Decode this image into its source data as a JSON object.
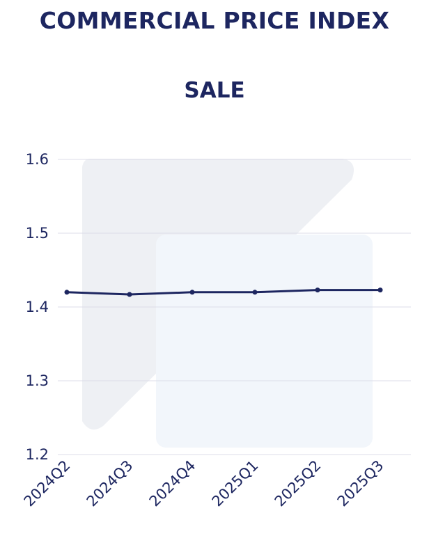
{
  "title": "COMMERCIAL PRICE INDEX",
  "subtitle": "SALE",
  "colors": {
    "line": "#1d2660",
    "grid": "#dcdde8",
    "text": "#1d2660",
    "watermark": "#eef0f4",
    "watermark_light": "#f2f6fb"
  },
  "chart_data": {
    "type": "line",
    "title": "COMMERCIAL PRICE INDEX",
    "subtitle": "SALE",
    "categories": [
      "2024Q2",
      "2024Q3",
      "2024Q4",
      "2025Q1",
      "2025Q2",
      "2025Q3"
    ],
    "series": [
      {
        "values": [
          1.42,
          1.417,
          1.42,
          1.42,
          1.423,
          1.423
        ]
      }
    ],
    "yticks": [
      "1.2",
      "1.3",
      "1.4",
      "1.5",
      "1.6"
    ],
    "ylim": [
      1.2,
      1.6
    ],
    "grid": true,
    "legend": "none"
  }
}
